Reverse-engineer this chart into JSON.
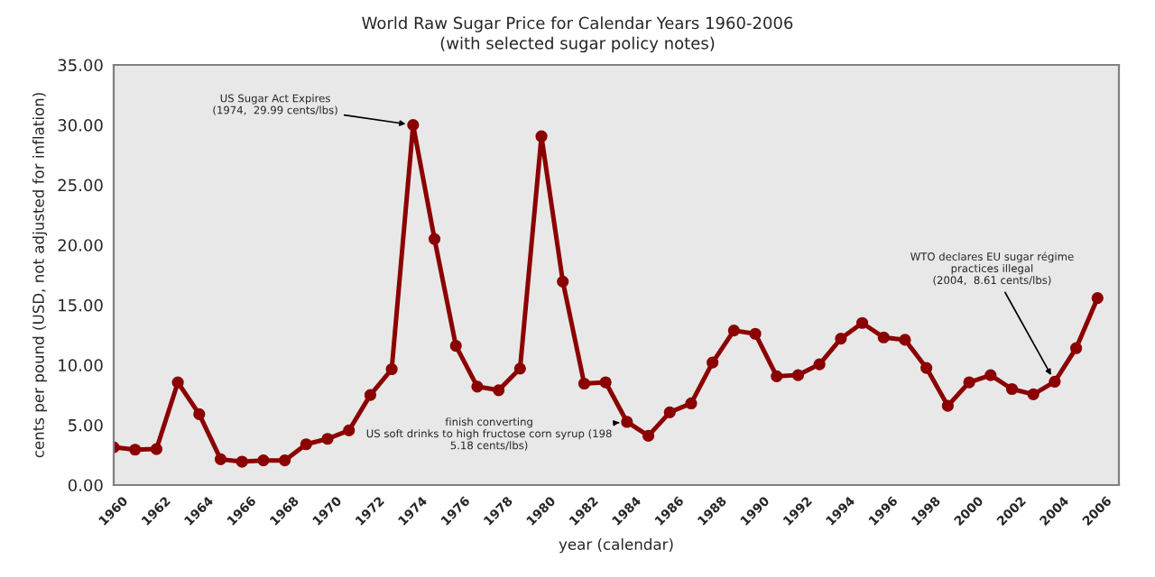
{
  "chart_data": {
    "type": "line",
    "title": "World Raw Sugar Price for Calendar Years 1960-2006",
    "subtitle": "(with selected sugar policy notes)",
    "xlabel": "year (calendar)",
    "ylabel": "cents per pound (USD, not adjusted for inflation)",
    "x": [
      1960,
      1961,
      1962,
      1963,
      1964,
      1965,
      1966,
      1967,
      1968,
      1969,
      1970,
      1971,
      1972,
      1973,
      1974,
      1975,
      1976,
      1977,
      1978,
      1979,
      1980,
      1981,
      1982,
      1983,
      1984,
      1985,
      1986,
      1987,
      1988,
      1989,
      1990,
      1991,
      1992,
      1993,
      1994,
      1995,
      1996,
      1997,
      1998,
      1999,
      2000,
      2001,
      2002,
      2003,
      2004,
      2005,
      2006
    ],
    "series": [
      {
        "color": "#8b0000",
        "values": [
          3.15,
          2.95,
          3.0,
          8.55,
          5.9,
          2.15,
          1.95,
          2.05,
          2.05,
          3.4,
          3.85,
          4.55,
          7.5,
          9.65,
          29.99,
          20.5,
          11.6,
          8.2,
          7.9,
          9.7,
          29.05,
          16.95,
          8.45,
          8.56,
          5.26,
          4.1,
          6.06,
          6.8,
          10.2,
          12.87,
          12.6,
          9.06,
          9.16,
          10.06,
          12.2,
          13.5,
          12.3,
          12.1,
          9.76,
          6.6,
          8.56,
          9.16,
          8.0,
          7.56,
          8.61,
          11.4,
          15.57
        ]
      }
    ],
    "xlim": [
      1960,
      2007
    ],
    "xticks": [
      1960,
      1962,
      1964,
      1966,
      1968,
      1970,
      1972,
      1974,
      1976,
      1978,
      1980,
      1982,
      1984,
      1986,
      1988,
      1990,
      1992,
      1994,
      1996,
      1998,
      2000,
      2002,
      2004,
      2006
    ],
    "ylim": [
      0,
      35
    ],
    "yticks": [
      {
        "value": 0,
        "label": "0.00"
      },
      {
        "value": 5,
        "label": "5.00"
      },
      {
        "value": 10,
        "label": "10.00"
      },
      {
        "value": 15,
        "label": "15.00"
      },
      {
        "value": 20,
        "label": "20.00"
      },
      {
        "value": 25,
        "label": "25.00"
      },
      {
        "value": 30,
        "label": "30.00"
      },
      {
        "value": 35,
        "label": "35.00"
      }
    ],
    "annotations": [
      {
        "text": "US Sugar Act Expires\n(1974,  29.99 cents/lbs)",
        "x": 1974,
        "y": 29.99
      },
      {
        "text": "finish converting\nUS soft drinks to high fructose corn syrup (198\n5.18 cents/lbs)",
        "x": 1984,
        "y": 5.26
      },
      {
        "text": "WTO declares EU sugar régime\npractices illegal\n(2004,  8.61 cents/lbs)",
        "x": 2004,
        "y": 8.61
      }
    ],
    "grid": false,
    "legend": false,
    "marker": "circle",
    "line_style": "solid"
  }
}
